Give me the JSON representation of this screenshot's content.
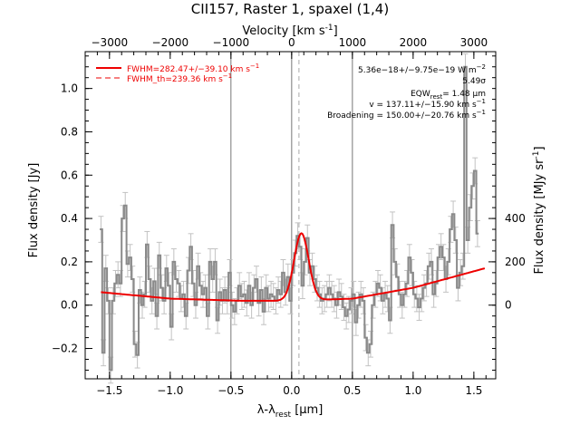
{
  "chart_data": {
    "type": "line",
    "title": "CII157, Raster 1, spaxel (1,4)",
    "xlabel": "λ-λ",
    "xlabel_sub": "rest",
    "xlabel_unit": " [μm]",
    "ylabel": "Flux density [Jy]",
    "top_xlabel": "Velocity [km s",
    "top_xlabel_sup": "-1",
    "top_xlabel_end": "]",
    "right_ylabel": "Flux density [MJy sr",
    "right_ylabel_sup": "-1",
    "right_ylabel_end": "]",
    "xlim": [
      -1.7,
      1.68
    ],
    "ylim": [
      -0.34,
      1.17
    ],
    "x_ticks": [
      -1.5,
      -1.0,
      -0.5,
      0.0,
      0.5,
      1.0,
      1.5
    ],
    "x_tick_labels": [
      "−1.5",
      "−1.0",
      "−0.5",
      "0.0",
      "0.5",
      "1.0",
      "1.5"
    ],
    "y_ticks": [
      -0.2,
      0.0,
      0.2,
      0.4,
      0.6,
      0.8,
      1.0
    ],
    "y_tick_labels": [
      "−0.2",
      "0.0",
      "0.2",
      "0.4",
      "0.6",
      "0.8",
      "1.0"
    ],
    "velocity_ticks": [
      -3000,
      -2000,
      -1000,
      0,
      1000,
      2000,
      3000
    ],
    "velocity_tick_labels": [
      "−3000",
      "−2000",
      "−1000",
      "0",
      "1000",
      "2000",
      "3000"
    ],
    "right_ticks": [
      0,
      200,
      400
    ],
    "right_tick_labels": [
      "0",
      "200",
      "400"
    ],
    "reference_lines_x": [
      -0.5,
      0.0,
      0.5
    ],
    "line_center_x": 0.06,
    "legend": [
      {
        "label": "FWHM=282.47+/−39.10 km s",
        "sup": "−1",
        "style": "solid",
        "color": "#ee0000"
      },
      {
        "label": "FWHM_th=239.36 km s",
        "sup": "−1",
        "style": "dashed",
        "color": "#ee0000"
      }
    ],
    "annotations": [
      "5.36e−18+/−9.75e−19 W m",
      "5.49σ",
      "EQW",
      "= 1.48 μm",
      "v = 137.11+/−15.90 km s",
      "Broadening = 150.00+/−20.76 km s"
    ],
    "annotation_extras": {
      "sup_m2": "−2",
      "sub_rest": "rest",
      "sup_kms": "−1"
    },
    "colors": {
      "data": "#8a8a8a",
      "errorbar": "#c2c2c2",
      "fit": "#ee0000",
      "ref_line": "#777777"
    },
    "spectrum": {
      "x": [
        -1.57,
        -1.55,
        -1.53,
        -1.51,
        -1.49,
        -1.47,
        -1.45,
        -1.43,
        -1.41,
        -1.39,
        -1.37,
        -1.35,
        -1.33,
        -1.31,
        -1.29,
        -1.27,
        -1.25,
        -1.23,
        -1.21,
        -1.19,
        -1.17,
        -1.15,
        -1.13,
        -1.11,
        -1.09,
        -1.07,
        -1.05,
        -1.03,
        -1.01,
        -0.99,
        -0.97,
        -0.95,
        -0.93,
        -0.91,
        -0.89,
        -0.87,
        -0.85,
        -0.83,
        -0.81,
        -0.79,
        -0.77,
        -0.75,
        -0.73,
        -0.71,
        -0.69,
        -0.67,
        -0.65,
        -0.63,
        -0.61,
        -0.59,
        -0.57,
        -0.55,
        -0.53,
        -0.51,
        -0.49,
        -0.47,
        -0.45,
        -0.43,
        -0.41,
        -0.39,
        -0.37,
        -0.35,
        -0.33,
        -0.31,
        -0.29,
        -0.27,
        -0.25,
        -0.23,
        -0.21,
        -0.19,
        -0.17,
        -0.15,
        -0.13,
        -0.11,
        -0.09,
        -0.07,
        -0.05,
        -0.03,
        -0.01,
        0.01,
        0.03,
        0.05,
        0.07,
        0.09,
        0.11,
        0.13,
        0.15,
        0.17,
        0.19,
        0.21,
        0.23,
        0.25,
        0.27,
        0.29,
        0.31,
        0.33,
        0.35,
        0.37,
        0.39,
        0.41,
        0.43,
        0.45,
        0.47,
        0.49,
        0.51,
        0.53,
        0.55,
        0.57,
        0.59,
        0.61,
        0.63,
        0.65,
        0.67,
        0.69,
        0.71,
        0.73,
        0.75,
        0.77,
        0.79,
        0.81,
        0.83,
        0.85,
        0.87,
        0.89,
        0.91,
        0.93,
        0.95,
        0.97,
        0.99,
        1.01,
        1.03,
        1.05,
        1.07,
        1.09,
        1.11,
        1.13,
        1.15,
        1.17,
        1.19,
        1.21,
        1.23,
        1.25,
        1.27,
        1.29,
        1.31,
        1.33,
        1.35,
        1.37,
        1.39,
        1.41,
        1.43,
        1.45,
        1.47,
        1.49,
        1.51,
        1.53
      ],
      "y": [
        0.35,
        -0.22,
        0.17,
        0.02,
        -0.3,
        0.02,
        0.1,
        0.14,
        0.1,
        0.4,
        0.46,
        0.19,
        0.22,
        0.12,
        -0.18,
        -0.23,
        0.07,
        0.0,
        0.05,
        0.28,
        0.12,
        0.02,
        0.11,
        -0.05,
        0.23,
        0.08,
        0.02,
        0.17,
        0.09,
        -0.1,
        0.2,
        0.12,
        0.1,
        0.03,
        0.05,
        -0.05,
        0.16,
        0.27,
        0.1,
        0.0,
        0.18,
        0.09,
        0.05,
        0.08,
        -0.05,
        0.2,
        0.12,
        0.2,
        -0.07,
        0.06,
        0.02,
        0.07,
        0.02,
        0.15,
        0.0,
        -0.03,
        0.02,
        0.09,
        0.04,
        0.05,
        0.01,
        0.09,
        0.0,
        0.08,
        0.12,
        0.01,
        0.07,
        -0.03,
        0.08,
        0.03,
        0.05,
        0.04,
        0.02,
        0.07,
        0.05,
        0.15,
        0.06,
        0.13,
        0.02,
        0.15,
        0.24,
        0.32,
        0.27,
        0.09,
        0.2,
        0.31,
        0.15,
        0.18,
        0.12,
        0.08,
        0.05,
        0.02,
        0.03,
        0.05,
        0.08,
        0.05,
        0.03,
        0.0,
        0.06,
        0.04,
        -0.01,
        -0.05,
        -0.02,
        0.02,
        0.05,
        -0.08,
        0.0,
        0.05,
        0.02,
        -0.15,
        -0.22,
        -0.18,
        0.0,
        0.05,
        0.1,
        0.08,
        0.02,
        0.05,
        0.03,
        -0.07,
        0.37,
        0.2,
        0.13,
        0.05,
        0.0,
        0.05,
        0.1,
        0.22,
        0.15,
        0.05,
        0.03,
        -0.01,
        0.03,
        0.08,
        0.1,
        0.18,
        0.2,
        0.05,
        0.1,
        0.22,
        0.27,
        0.22,
        0.12,
        0.2,
        0.35,
        0.42,
        0.3,
        0.08,
        0.15,
        0.18,
        1.1,
        0.3,
        0.45,
        0.55,
        0.62,
        0.33
      ],
      "err": 0.06
    },
    "fit_model": {
      "continuum_x": [
        -1.57,
        -1.0,
        -0.4,
        0.0,
        0.5,
        1.0,
        1.59
      ],
      "continuum_y": [
        0.06,
        0.03,
        0.02,
        0.02,
        0.03,
        0.08,
        0.17
      ],
      "gaussian_center": 0.08,
      "gaussian_sigma": 0.06,
      "gaussian_peak": 0.31
    }
  }
}
